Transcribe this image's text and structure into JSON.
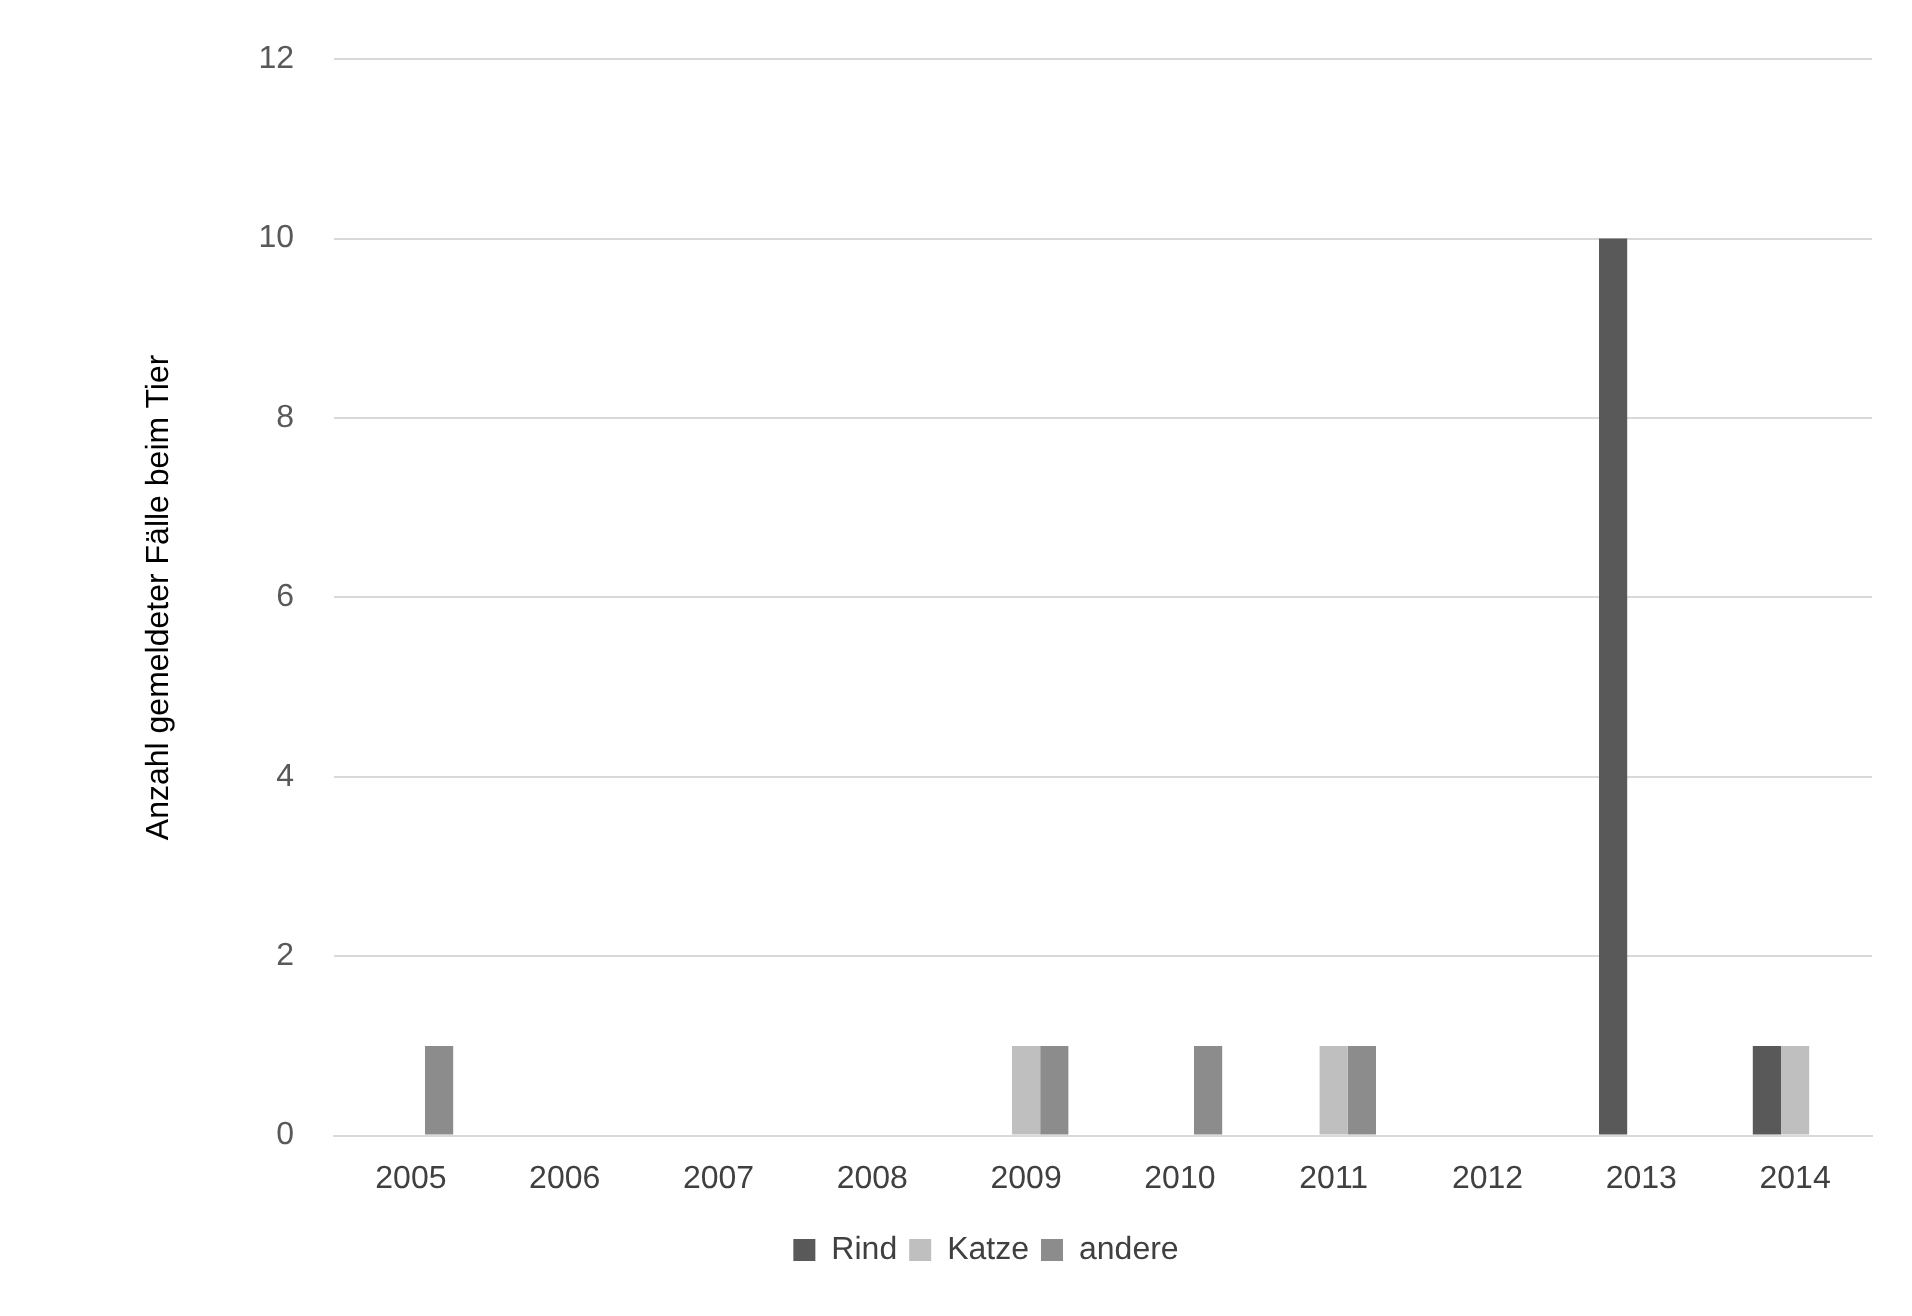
{
  "chart_data": {
    "type": "bar",
    "ylabel": "Anzahl gemeldeter Fälle beim Tier",
    "categories": [
      "2005",
      "2006",
      "2007",
      "2008",
      "2009",
      "2010",
      "2011",
      "2012",
      "2013",
      "2014"
    ],
    "series": [
      {
        "name": "Rind",
        "color": "#595959",
        "values": [
          0,
          0,
          0,
          0,
          0,
          0,
          0,
          0,
          10,
          1
        ]
      },
      {
        "name": "Katze",
        "color": "#bfbfbf",
        "values": [
          0,
          0,
          0,
          0,
          1,
          0,
          1,
          0,
          0,
          1
        ]
      },
      {
        "name": "andere",
        "color": "#8c8c8c",
        "values": [
          1,
          0,
          0,
          0,
          1,
          1,
          1,
          0,
          0,
          0
        ]
      }
    ],
    "ylim": [
      0,
      12
    ],
    "yticks": [
      0,
      2,
      4,
      6,
      8,
      10,
      12
    ],
    "grid": "y",
    "legend": "bottom"
  }
}
